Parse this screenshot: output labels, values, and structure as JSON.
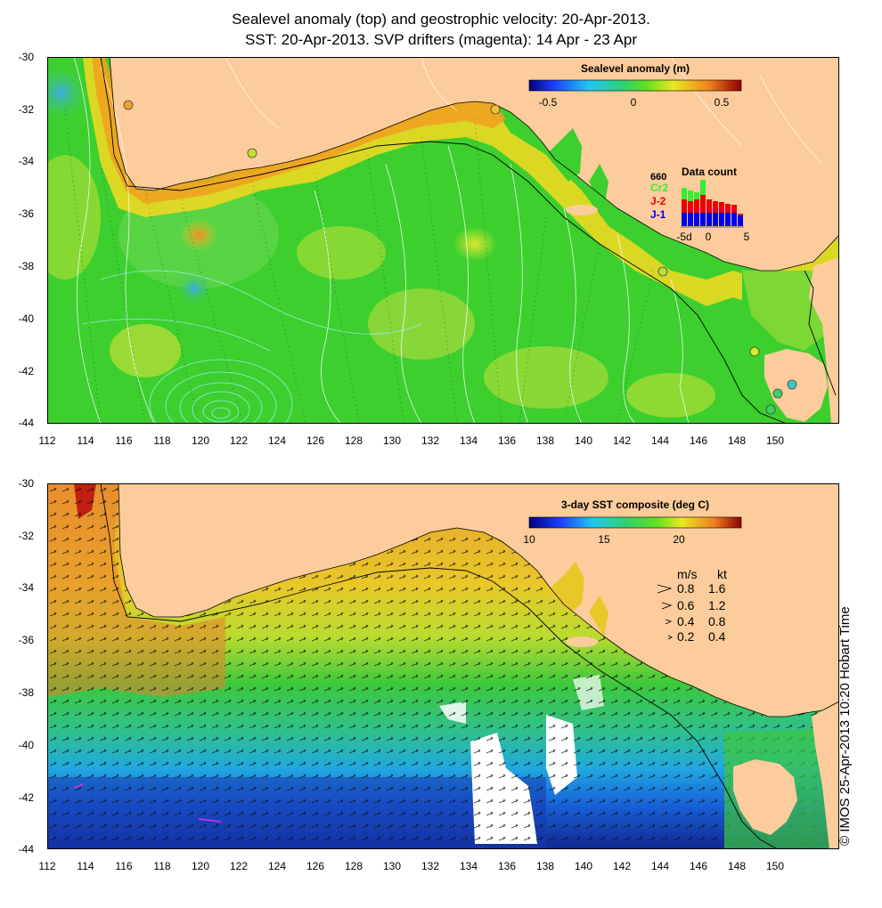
{
  "title": {
    "line1": "Sealevel anomaly (top) and geostrophic velocity: 20-Apr-2013.",
    "line2": "SST: 20-Apr-2013. SVP drifters (magenta): 14 Apr - 23 Apr"
  },
  "axes": {
    "y_labels": [
      "-30",
      "-32",
      "-34",
      "-36",
      "-38",
      "-40",
      "-42",
      "-44"
    ],
    "x_labels": [
      "112",
      "114",
      "116",
      "118",
      "120",
      "122",
      "124",
      "126",
      "128",
      "130",
      "132",
      "134",
      "136",
      "138",
      "140",
      "142",
      "144",
      "146",
      "148",
      "150"
    ]
  },
  "top_panel": {
    "colorbar_title": "Sealevel anomaly (m)",
    "colorbar_ticks": [
      "-0.5",
      "0",
      "0.5"
    ],
    "data_count": {
      "title": "Data count",
      "max": "660",
      "series": [
        "Cr2",
        "J-2",
        "J-1"
      ],
      "series_colors": [
        "#33ee33",
        "#ee0000",
        "#0000ee"
      ],
      "x_labels": [
        "-5d",
        "0",
        "5"
      ]
    }
  },
  "bottom_panel": {
    "colorbar_title": "3-day SST composite (deg C)",
    "colorbar_ticks": [
      "10",
      "15",
      "20"
    ],
    "speed_legend": {
      "header_ms": "m/s",
      "header_kt": "kt",
      "rows": [
        {
          "ms": "0.8",
          "kt": "1.6"
        },
        {
          "ms": "0.6",
          "kt": "1.2"
        },
        {
          "ms": "0.4",
          "kt": "0.8"
        },
        {
          "ms": "0.2",
          "kt": "0.4"
        }
      ]
    }
  },
  "side_label": "© IMOS 25-Apr-2013 10:20 Hobart Time"
}
